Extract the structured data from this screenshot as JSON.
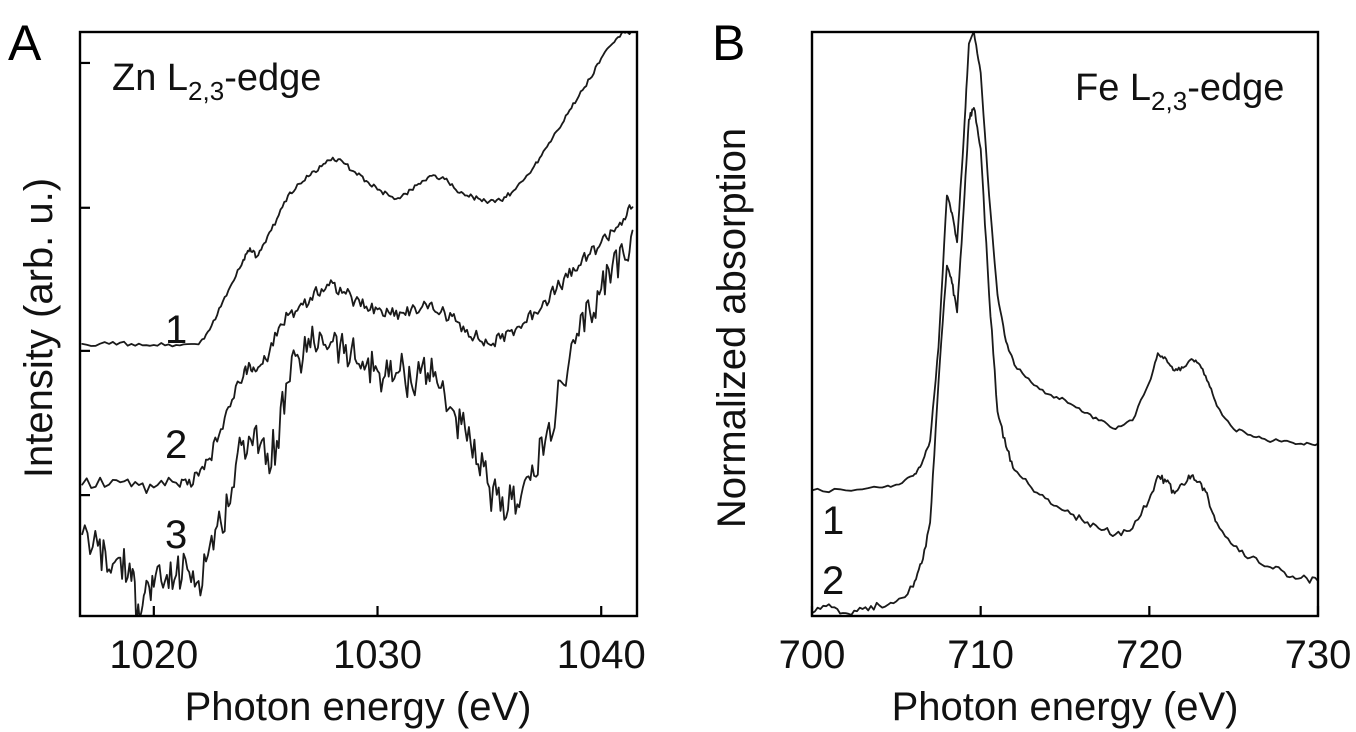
{
  "chart_data": [
    {
      "panel": "A",
      "type": "line",
      "annotation": "Zn L2,3-edge",
      "annotation_main": "Zn L",
      "annotation_sub": "2,3",
      "annotation_tail": "-edge",
      "xlabel": "Photon energy (eV)",
      "ylabel": "Intensity (arb. u.)",
      "xlim": [
        1016.7,
        1041.6
      ],
      "ylim": [
        0,
        1
      ],
      "xticks": [
        1020,
        1030,
        1040
      ],
      "xtick_labels": [
        "1020",
        "1030",
        "1040"
      ],
      "yticks": [
        0.207,
        0.454,
        0.699,
        0.947
      ],
      "series": [
        {
          "label": "1",
          "noise": 0.004,
          "x": [
            1016.8,
            1018,
            1019,
            1020,
            1021,
            1022,
            1022.5,
            1023,
            1023.5,
            1024,
            1024.3,
            1024.6,
            1025,
            1025.5,
            1026,
            1026.5,
            1027,
            1027.5,
            1028,
            1028.5,
            1029,
            1029.5,
            1030,
            1030.5,
            1031,
            1031.5,
            1032,
            1032.5,
            1033,
            1033.5,
            1034,
            1034.5,
            1035,
            1035.5,
            1036,
            1036.5,
            1037,
            1037.5,
            1038,
            1038.5,
            1039,
            1039.5,
            1040,
            1040.5,
            1041,
            1041.4
          ],
          "y": [
            0.466,
            0.466,
            0.466,
            0.464,
            0.464,
            0.465,
            0.49,
            0.53,
            0.57,
            0.61,
            0.63,
            0.615,
            0.64,
            0.68,
            0.72,
            0.74,
            0.755,
            0.77,
            0.785,
            0.775,
            0.76,
            0.745,
            0.73,
            0.72,
            0.715,
            0.73,
            0.745,
            0.755,
            0.748,
            0.73,
            0.72,
            0.715,
            0.71,
            0.712,
            0.725,
            0.745,
            0.77,
            0.8,
            0.83,
            0.86,
            0.89,
            0.92,
            0.955,
            0.98,
            1.0,
            1.0
          ]
        },
        {
          "label": "2",
          "noise": 0.012,
          "x": [
            1016.8,
            1018,
            1019,
            1020,
            1021,
            1021.5,
            1022,
            1022.5,
            1023,
            1023.5,
            1024,
            1024.3,
            1024.6,
            1025,
            1025.5,
            1026,
            1026.5,
            1027,
            1027.5,
            1028,
            1028.5,
            1029,
            1029.5,
            1030,
            1030.5,
            1031,
            1031.5,
            1032,
            1032.5,
            1033,
            1033.5,
            1034,
            1034.5,
            1035,
            1035.5,
            1036,
            1036.5,
            1037,
            1037.5,
            1038,
            1038.5,
            1039,
            1039.5,
            1040,
            1040.5,
            1041,
            1041.4
          ],
          "y": [
            0.225,
            0.225,
            0.222,
            0.22,
            0.228,
            0.225,
            0.24,
            0.27,
            0.32,
            0.37,
            0.41,
            0.43,
            0.42,
            0.44,
            0.48,
            0.515,
            0.53,
            0.545,
            0.56,
            0.57,
            0.555,
            0.54,
            0.53,
            0.525,
            0.52,
            0.52,
            0.525,
            0.53,
            0.525,
            0.52,
            0.505,
            0.49,
            0.475,
            0.465,
            0.475,
            0.49,
            0.5,
            0.52,
            0.54,
            0.56,
            0.58,
            0.6,
            0.62,
            0.64,
            0.66,
            0.68,
            0.7
          ]
        },
        {
          "label": "3",
          "noise": 0.035,
          "x": [
            1016.8,
            1017.5,
            1018,
            1018.5,
            1019,
            1019.3,
            1019.6,
            1020,
            1020.5,
            1021,
            1021.5,
            1022,
            1022.5,
            1023,
            1023.5,
            1024,
            1024.5,
            1025,
            1025.5,
            1026,
            1026.5,
            1027,
            1027.5,
            1028,
            1028.5,
            1029,
            1029.5,
            1030,
            1030.5,
            1031,
            1031.5,
            1032,
            1032.5,
            1033,
            1033.5,
            1034,
            1034.5,
            1035,
            1035.5,
            1036,
            1036.5,
            1037,
            1037.5,
            1038,
            1038.5,
            1039,
            1039.5,
            1040,
            1040.5,
            1041,
            1041.4
          ],
          "y": [
            0.14,
            0.12,
            0.08,
            0.1,
            0.06,
            0.02,
            0.04,
            0.05,
            0.06,
            0.07,
            0.08,
            0.06,
            0.12,
            0.16,
            0.22,
            0.3,
            0.32,
            0.26,
            0.3,
            0.4,
            0.44,
            0.46,
            0.48,
            0.47,
            0.45,
            0.44,
            0.43,
            0.42,
            0.41,
            0.42,
            0.4,
            0.43,
            0.41,
            0.38,
            0.34,
            0.3,
            0.26,
            0.22,
            0.18,
            0.2,
            0.22,
            0.24,
            0.3,
            0.36,
            0.42,
            0.48,
            0.52,
            0.56,
            0.6,
            0.62,
            0.66
          ]
        }
      ]
    },
    {
      "panel": "B",
      "type": "line",
      "annotation": "Fe L2,3-edge",
      "annotation_main": "Fe L",
      "annotation_sub": "2,3",
      "annotation_tail": "-edge",
      "xlabel": "Photon energy (eV)",
      "ylabel": "Normalized absorption",
      "xlim": [
        700,
        730
      ],
      "ylim": [
        0,
        1
      ],
      "xticks": [
        700,
        710,
        720,
        730
      ],
      "xtick_labels": [
        "700",
        "710",
        "720",
        "730"
      ],
      "yticks": [],
      "series": [
        {
          "label": "1",
          "noise": 0.003,
          "x": [
            700,
            702,
            704,
            705,
            706,
            706.5,
            707,
            707.5,
            708,
            708.3,
            708.6,
            709,
            709.3,
            709.6,
            710,
            710.5,
            711,
            711.5,
            712,
            713,
            714,
            715,
            716,
            717,
            718,
            719,
            720,
            720.5,
            721,
            721.5,
            722,
            722.5,
            723,
            723.5,
            724,
            725,
            726,
            727,
            728,
            729,
            730
          ],
          "y": [
            0.215,
            0.215,
            0.22,
            0.225,
            0.24,
            0.26,
            0.3,
            0.46,
            0.72,
            0.69,
            0.64,
            0.82,
            0.98,
            1.0,
            0.93,
            0.72,
            0.55,
            0.47,
            0.43,
            0.4,
            0.38,
            0.37,
            0.35,
            0.335,
            0.32,
            0.335,
            0.4,
            0.45,
            0.44,
            0.42,
            0.425,
            0.44,
            0.43,
            0.4,
            0.36,
            0.32,
            0.31,
            0.3,
            0.3,
            0.295,
            0.295
          ]
        },
        {
          "label": "2",
          "noise": 0.006,
          "x": [
            700,
            701,
            702,
            703,
            704,
            705,
            706,
            706.5,
            707,
            707.5,
            708,
            708.3,
            708.6,
            709,
            709.3,
            709.6,
            710,
            710.5,
            711,
            711.5,
            712,
            713,
            714,
            715,
            716,
            717,
            718,
            719,
            720,
            720.5,
            721,
            721.5,
            722,
            722.5,
            723,
            723.5,
            724,
            725,
            726,
            727,
            728,
            729,
            730
          ],
          "y": [
            0.005,
            0.02,
            0.005,
            0.012,
            0.018,
            0.025,
            0.05,
            0.09,
            0.16,
            0.4,
            0.6,
            0.57,
            0.52,
            0.7,
            0.85,
            0.87,
            0.8,
            0.55,
            0.35,
            0.29,
            0.25,
            0.22,
            0.2,
            0.18,
            0.165,
            0.15,
            0.14,
            0.15,
            0.2,
            0.24,
            0.23,
            0.21,
            0.225,
            0.24,
            0.23,
            0.2,
            0.16,
            0.12,
            0.1,
            0.085,
            0.075,
            0.065,
            0.06
          ]
        }
      ]
    }
  ]
}
